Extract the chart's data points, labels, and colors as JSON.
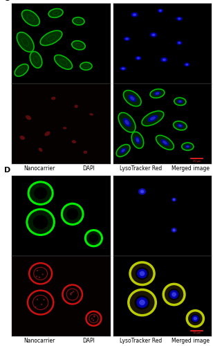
{
  "label_C": "C",
  "label_D": "D",
  "panel_labels_C": [
    "Nanocarrier",
    "DAPI",
    "LysoTracker Red",
    "Merged image"
  ],
  "panel_labels_D": [
    "Nanocarrier",
    "DAPI",
    "LysoTracker Red",
    "Merged image"
  ],
  "fig_bg": "#ffffff",
  "label_fontsize": 5.5,
  "letter_fontsize": 8,
  "figure_width": 3.08,
  "figure_height": 5.0,
  "dpi": 100
}
